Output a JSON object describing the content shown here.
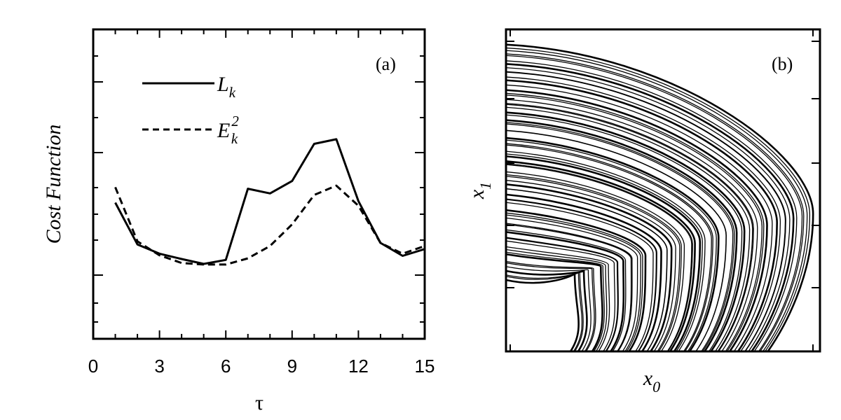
{
  "chart_data": [
    {
      "type": "line",
      "panel_label": "(a)",
      "title": "",
      "xlabel": "τ",
      "ylabel": "Cost Function",
      "xlim": [
        0,
        15
      ],
      "xticks": [
        0,
        3,
        6,
        9,
        12,
        15
      ],
      "y_tick_labels_shown": false,
      "legend_position": "top-left",
      "series": [
        {
          "name": "L",
          "name_subscript": "k",
          "style": "solid",
          "x": [
            1,
            2,
            3,
            4,
            5,
            6,
            7,
            8,
            9,
            10,
            11,
            12,
            13,
            14,
            15
          ],
          "y": [
            2.4,
            1.05,
            0.75,
            0.58,
            0.42,
            0.55,
            2.85,
            2.7,
            3.1,
            4.3,
            4.45,
            2.45,
            1.1,
            0.68,
            0.9
          ]
        },
        {
          "name": "E",
          "name_subscript": "k",
          "name_superscript": "2",
          "style": "dashed",
          "x": [
            1,
            2,
            3,
            4,
            5,
            6,
            7,
            8,
            9,
            10,
            11,
            12,
            13,
            14,
            15
          ],
          "y": [
            2.9,
            1.15,
            0.7,
            0.45,
            0.4,
            0.4,
            0.6,
            1.0,
            1.7,
            2.65,
            2.95,
            2.3,
            1.1,
            0.75,
            1.0
          ]
        }
      ]
    },
    {
      "type": "line",
      "panel_label": "(b)",
      "title": "",
      "xlabel": "x",
      "xlabel_subscript": "0",
      "ylabel": "x",
      "ylabel_subscript": "1",
      "tick_labels_shown": false,
      "description_kind": "phase-space trajectory"
    }
  ]
}
